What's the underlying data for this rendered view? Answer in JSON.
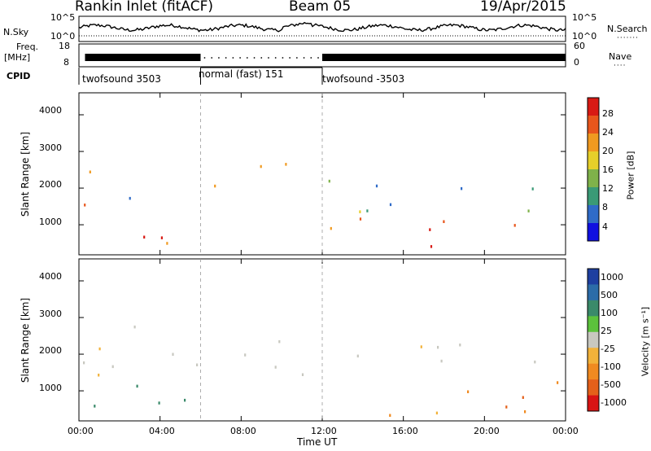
{
  "header": {
    "station": "Rankin Inlet (fitACF)",
    "beam": "Beam 05",
    "date": "19/Apr/2015"
  },
  "status_panel": {
    "nsky_label": "N.Sky",
    "nsky_ticks": [
      "10^5",
      "10^0"
    ],
    "nsearch_label": "N.Search",
    "nsearch_ticks": [
      "10^5",
      "10^0"
    ],
    "freq_label_1": "Freq.",
    "freq_label_2": "[MHz]",
    "freq_ticks": [
      "18",
      "8"
    ],
    "nave_label": "Nave",
    "nave_ticks": [
      "60",
      "0"
    ],
    "cpid_label": "CPID",
    "cpid_segments": [
      {
        "label": "twofsound 3503",
        "start_hour": 0,
        "end_hour": 6
      },
      {
        "label": "normal (fast) 151",
        "start_hour": 6,
        "end_hour": 12
      },
      {
        "label": "twofsound -3503",
        "start_hour": 12,
        "end_hour": 24
      }
    ]
  },
  "time_axis": {
    "label": "Time UT",
    "ticks": [
      "00:00",
      "04:00",
      "08:00",
      "12:00",
      "16:00",
      "20:00",
      "00:00"
    ],
    "range_hours": [
      0,
      24
    ]
  },
  "panels": {
    "power": {
      "ylabel": "Slant Range [km]",
      "yticks": [
        "1000",
        "2000",
        "3000",
        "4000"
      ],
      "colorbar_label": "Power [dB]",
      "colorbar_ticks": [
        "4",
        "8",
        "12",
        "16",
        "20",
        "24",
        "28"
      ]
    },
    "velocity": {
      "ylabel": "Slant Range [km]",
      "yticks": [
        "1000",
        "2000",
        "3000",
        "4000"
      ],
      "colorbar_label": "Velocity [m s⁻¹]",
      "colorbar_ticks": [
        "1000",
        "500",
        "100",
        "25",
        "-25",
        "-100",
        "-500",
        "-1000"
      ]
    }
  },
  "chart_data": [
    {
      "type": "heatmap",
      "title": "Power",
      "xlabel": "Time UT",
      "ylabel": "Slant Range [km]",
      "xlim_hours": [
        0,
        24
      ],
      "ylim": [
        180,
        4600
      ],
      "yticks": [
        1000,
        2000,
        3000,
        4000
      ],
      "colorbar": {
        "label": "Power [dB]",
        "range": [
          0,
          32
        ],
        "ticks": [
          4,
          8,
          12,
          16,
          20,
          24,
          28
        ]
      },
      "colors": [
        "#1010e0",
        "#2f6bc8",
        "#3a9a76",
        "#7fb24a",
        "#e6cf2a",
        "#f09a20",
        "#e8561c",
        "#d81a14"
      ],
      "scatter_regions": [
        {
          "t0": 0,
          "t1": 6,
          "r0": 300,
          "r1": 1100,
          "dominant": "high power (24-30 dB)"
        },
        {
          "t0": 0,
          "t1": 5,
          "r0": 1400,
          "r1": 2500,
          "dominant": "mixed 8-24 dB"
        },
        {
          "t0": 6,
          "t1": 11,
          "r0": 1800,
          "r1": 2700,
          "dominant": "rising band, 8-28 dB"
        },
        {
          "t0": 12,
          "t1": 24,
          "r0": 400,
          "r1": 1200,
          "dominant": "high power (20-30 dB)"
        },
        {
          "t0": 12,
          "t1": 24,
          "r0": 1300,
          "r1": 2400,
          "dominant": "low-moderate power"
        }
      ]
    },
    {
      "type": "heatmap",
      "title": "Velocity",
      "xlabel": "Time UT",
      "ylabel": "Slant Range [km]",
      "xlim_hours": [
        0,
        24
      ],
      "ylim": [
        180,
        4600
      ],
      "yticks": [
        1000,
        2000,
        3000,
        4000
      ],
      "colorbar": {
        "label": "Velocity [m s⁻¹]",
        "ticks": [
          1000,
          500,
          100,
          25,
          -25,
          -100,
          -500,
          -1000
        ]
      },
      "colors": [
        "#1e3fa0",
        "#2c6ca8",
        "#3a8a6a",
        "#5cc23c",
        "#c8c8c0",
        "#f2b23a",
        "#f08a20",
        "#e4601a",
        "#d81414"
      ],
      "scatter_regions": [
        {
          "t0": 0,
          "t1": 12,
          "r0": 1400,
          "r1": 2900,
          "dominant": "near zero (ground scatter)"
        },
        {
          "t0": 0,
          "t1": 8,
          "r0": 300,
          "r1": 1200,
          "dominant": "+100 to +500 m/s"
        },
        {
          "t0": 12,
          "t1": 24,
          "r0": 1500,
          "r1": 2400,
          "dominant": "near zero"
        },
        {
          "t0": 12,
          "t1": 24,
          "r0": 300,
          "r1": 1300,
          "dominant": "-100 to -500 m/s"
        }
      ]
    }
  ]
}
